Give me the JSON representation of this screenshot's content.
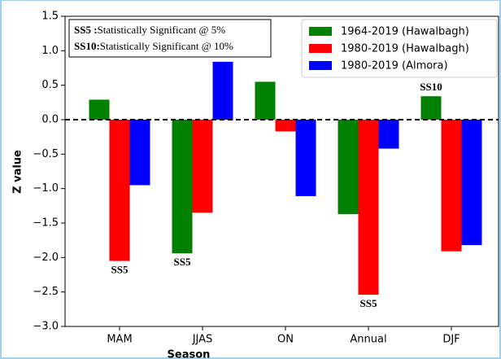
{
  "chart_data": {
    "type": "bar",
    "xlabel": "Season",
    "ylabel": "Z value",
    "categories": [
      "MAM",
      "JJAS",
      "ON",
      "Annual",
      "DJF"
    ],
    "series": [
      {
        "name": "1964-2019 (Hawalbagh)",
        "color": "#008000",
        "values": [
          0.29,
          -1.94,
          0.55,
          -1.37,
          0.34
        ]
      },
      {
        "name": "1980-2019 (Hawalbagh)",
        "color": "#ff0000",
        "values": [
          -2.05,
          -1.35,
          -0.17,
          -2.54,
          -1.91
        ]
      },
      {
        "name": "1980-2019 (Almora)",
        "color": "#0000ff",
        "values": [
          -0.95,
          0.84,
          -1.11,
          -0.42,
          -1.82
        ]
      }
    ],
    "ylim": [
      -3.0,
      1.5
    ],
    "yticks": [
      {
        "value": -3.0,
        "label": "−3.0"
      },
      {
        "value": -2.5,
        "label": "−2.5"
      },
      {
        "value": -2.0,
        "label": "−2.0"
      },
      {
        "value": -1.5,
        "label": "−1.5"
      },
      {
        "value": -1.0,
        "label": "−1.0"
      },
      {
        "value": -0.5,
        "label": "−0.5"
      },
      {
        "value": 0.0,
        "label": "0.0"
      },
      {
        "value": 0.5,
        "label": "0.5"
      },
      {
        "value": 1.0,
        "label": "1.0"
      },
      {
        "value": 1.5,
        "label": "1.5"
      }
    ],
    "reference_line": 0,
    "legend": "upper right",
    "note": [
      {
        "key": "SS5 :",
        "text": "Statistically Significant @ 5%"
      },
      {
        "key": "SS10:",
        "text": "Statistically Significant @ 10%"
      }
    ],
    "annotations": [
      {
        "text": "SS5",
        "category": "MAM",
        "series": "1980-2019 (Hawalbagh)"
      },
      {
        "text": "SS5",
        "category": "JJAS",
        "series": "1964-2019 (Hawalbagh)"
      },
      {
        "text": "SS5",
        "category": "Annual",
        "series": "1980-2019 (Hawalbagh)"
      },
      {
        "text": "SS10",
        "category": "DJF",
        "series": "1964-2019 (Hawalbagh)"
      }
    ]
  }
}
